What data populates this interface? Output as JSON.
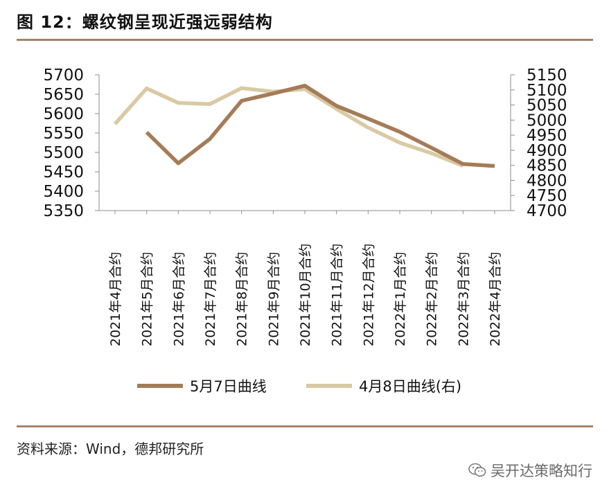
{
  "header": {
    "title": "图 12：螺纹钢呈现近强远弱结构"
  },
  "footer": {
    "source": "资料来源：Wind，德邦研究所",
    "watermark": "吴开达策略知行",
    "watermark_icon": "wechat-icon"
  },
  "colors": {
    "rule": "#a5836a",
    "series_may7": "#a57c58",
    "series_apr8": "#d9caa4"
  },
  "chart_data": {
    "type": "line",
    "categories": [
      "2021年4月合约",
      "2021年5月合约",
      "2021年6月合约",
      "2021年7月合约",
      "2021年8月合约",
      "2021年9月合约",
      "2021年10月合约",
      "2021年11月合约",
      "2021年12月合约",
      "2022年1月合约",
      "2022年2月合约",
      "2022年3月合约",
      "2022年4月合约"
    ],
    "series": [
      {
        "name": "5月7日曲线",
        "axis": "left",
        "values": [
          null,
          5552,
          5472,
          5535,
          5633,
          5652,
          5672,
          5620,
          5587,
          5553,
          5512,
          5470,
          5465
        ]
      },
      {
        "name": "4月8日曲线(右)",
        "axis": "right",
        "values": [
          4987,
          5105,
          5057,
          5053,
          5106,
          5094,
          5103,
          5037,
          4975,
          4925,
          4890,
          4848,
          null
        ]
      }
    ],
    "y_left": {
      "min": 5350,
      "max": 5700,
      "ticks": [
        "5700",
        "5650",
        "5600",
        "5550",
        "5500",
        "5450",
        "5400",
        "5350"
      ]
    },
    "y_right": {
      "min": 4700,
      "max": 5150,
      "ticks": [
        "5150",
        "5100",
        "5050",
        "5000",
        "4950",
        "4900",
        "4850",
        "4800",
        "4750",
        "4700"
      ]
    },
    "grid": false,
    "legend_position": "bottom"
  }
}
